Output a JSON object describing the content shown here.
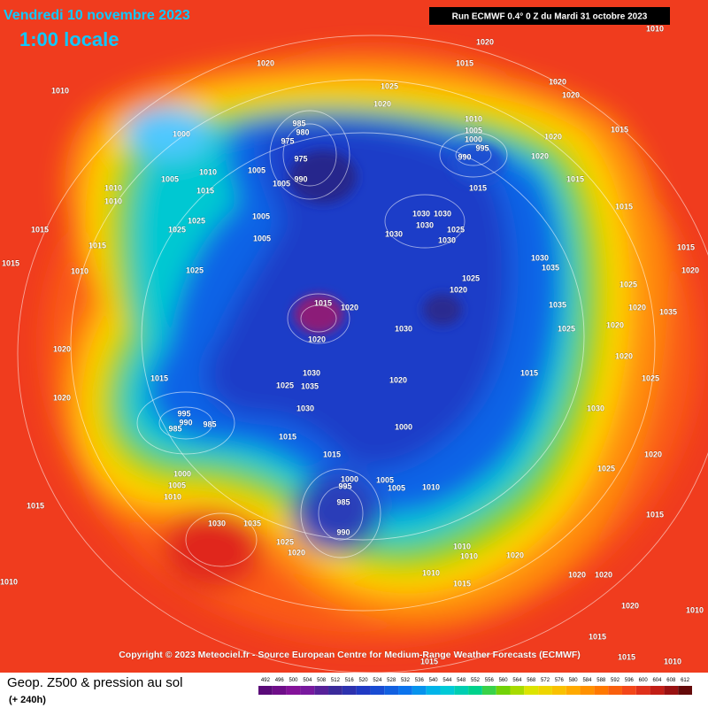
{
  "header": {
    "date": "Vendredi 10 novembre 2023",
    "time": "1:00 locale",
    "run": "Run ECMWF 0.4° 0 Z du Mardi 31 octobre 2023"
  },
  "copyright": "Copyright © 2023 Meteociel.fr - Source European Centre for Medium-Range Weather Forecasts (ECMWF)",
  "legend": {
    "title": "Geop. Z500 & pression au sol",
    "subtitle": "(+ 240h)",
    "scale": [
      492,
      496,
      500,
      504,
      508,
      512,
      516,
      520,
      524,
      528,
      532,
      536,
      540,
      544,
      548,
      552,
      556,
      560,
      564,
      568,
      572,
      576,
      580,
      584,
      588,
      592,
      596,
      600,
      604,
      608,
      612
    ]
  },
  "pressure_labels": [
    1010,
    1020,
    1015,
    1020,
    1010,
    1025,
    1020,
    1020,
    1020,
    1010,
    1005,
    1000,
    995,
    990,
    1020,
    1020,
    1015,
    985,
    980,
    975,
    975,
    1000,
    1005,
    990,
    1005,
    1010,
    1005,
    1015,
    1010,
    1010,
    1015,
    1015,
    1015,
    1025,
    1025,
    1005,
    1005,
    1030,
    1030,
    1030,
    1030,
    1025,
    1030,
    1015,
    1015,
    1030,
    1035,
    1025,
    1015,
    1010,
    1015,
    1020,
    1025,
    1020,
    1025,
    1035,
    1015,
    1020,
    1020,
    1035,
    1030,
    1020,
    1025,
    1020,
    1020,
    1020,
    1030,
    1035,
    1025,
    1020,
    1015,
    1015,
    1025,
    1030,
    1030,
    1020,
    995,
    990,
    985,
    985,
    1000,
    1015,
    1015,
    1025,
    1020,
    1000,
    1005,
    1010,
    1000,
    995,
    1005,
    1005,
    1010,
    985,
    990,
    1015,
    1030,
    1035,
    1025,
    1020,
    1010,
    1010,
    1020,
    1020,
    1020,
    1010,
    1015,
    1010,
    1020,
    1010,
    1015,
    1015,
    1015,
    1010,
    1015
  ]
}
